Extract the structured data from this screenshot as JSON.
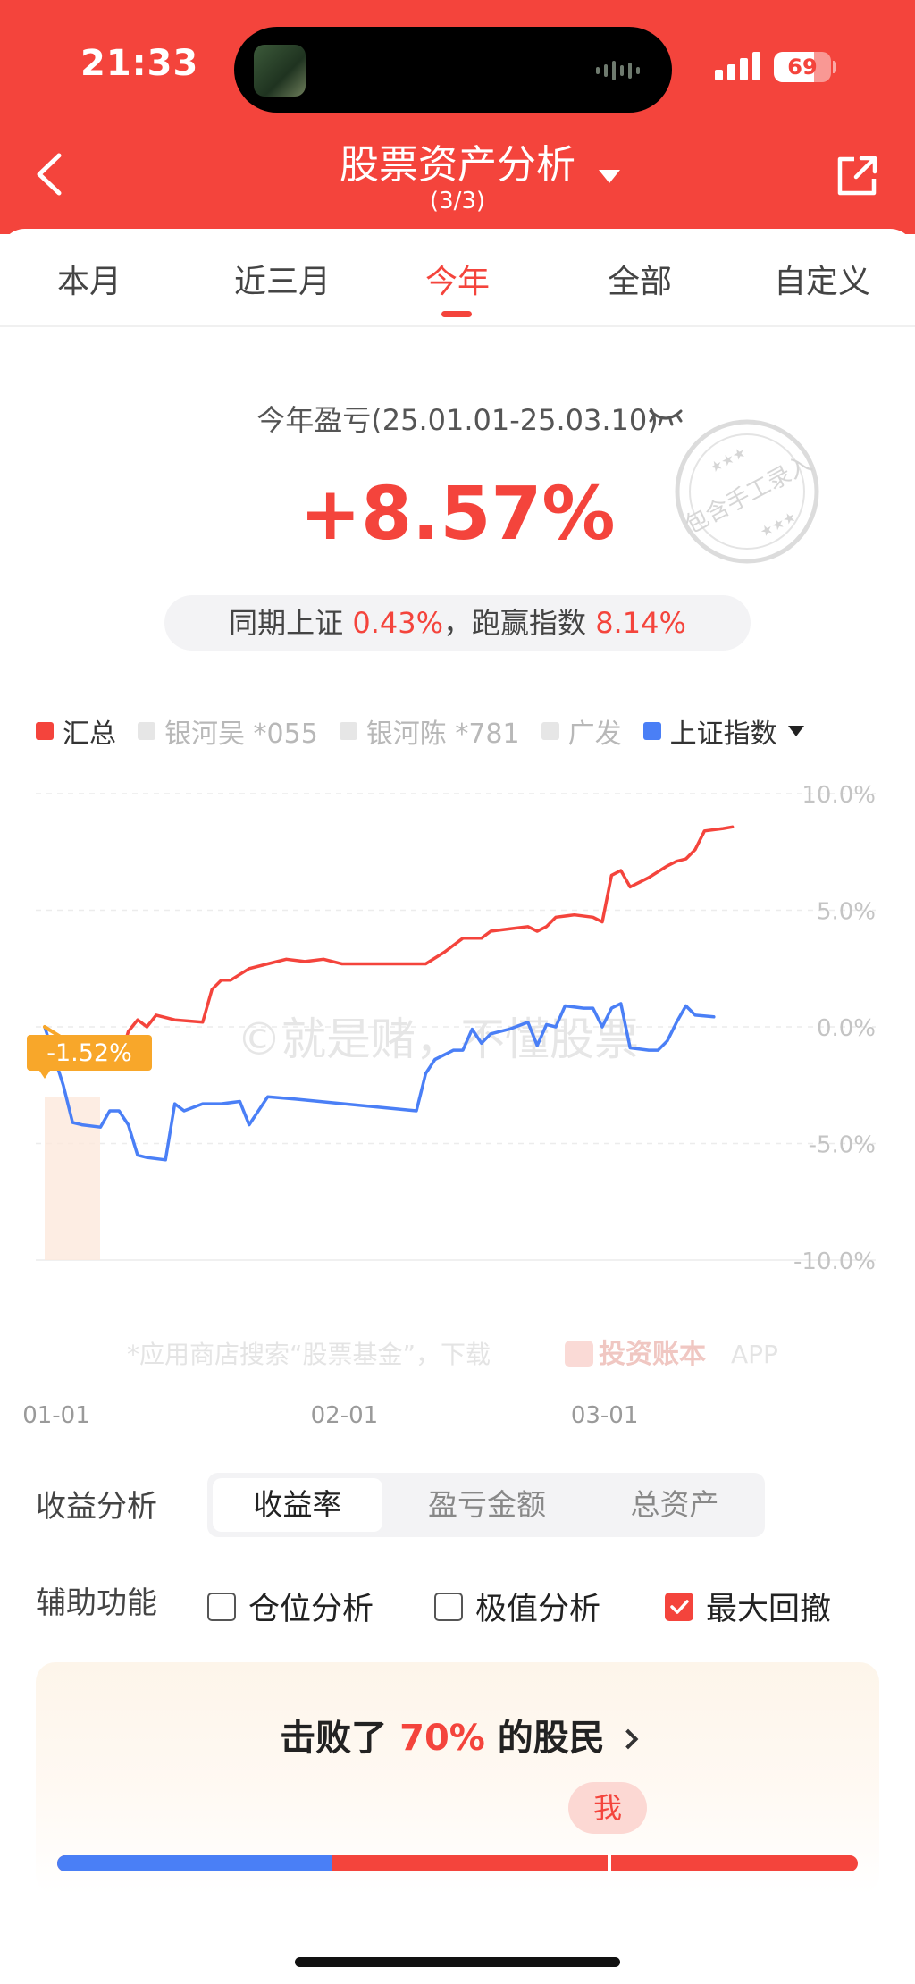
{
  "status_bar": {
    "time": "21:33",
    "battery": "69"
  },
  "header": {
    "title": "股票资产分析",
    "subtitle": "(3/3)"
  },
  "tabs": [
    {
      "label": "本月",
      "active": false
    },
    {
      "label": "近三月",
      "active": false
    },
    {
      "label": "今年",
      "active": true
    },
    {
      "label": "全部",
      "active": false
    },
    {
      "label": "自定义",
      "active": false
    }
  ],
  "summary": {
    "label": "今年盈亏(25.01.01-25.03.10)",
    "value": "+8.57%",
    "stamp_text": "包含手工录入",
    "compare_prefix": "同期上证 ",
    "compare_index": "0.43%",
    "compare_mid": "，跑赢指数 ",
    "compare_excess": "8.14%"
  },
  "legend": [
    {
      "name": "汇总",
      "color": "#f4443c",
      "active": true
    },
    {
      "name": "银河吴 *055",
      "color": "#e6e6e6",
      "active": false
    },
    {
      "name": "银河陈 *781",
      "color": "#e6e6e6",
      "active": false
    },
    {
      "name": "广发",
      "color": "#e6e6e6",
      "active": false
    },
    {
      "name": "上证指数",
      "color": "#4a7ff6",
      "active": true
    }
  ],
  "chart": {
    "y_ticks": [
      "10.0%",
      "5.0%",
      "0.0%",
      "-5.0%",
      "-10.0%"
    ],
    "x_ticks": [
      "01-01",
      "02-01",
      "03-01"
    ],
    "drawdown_label": "-1.52%",
    "watermark": "©就是赌，不懂股票",
    "footer_text": "*应用商店搜索“股票基金”，下载",
    "footer_brand": "投资账本",
    "footer_app": "APP"
  },
  "chart_data": {
    "type": "line",
    "ylim": [
      -10,
      10
    ],
    "x_range": [
      "2025-01-01",
      "2025-03-10"
    ],
    "series": [
      {
        "name": "汇总",
        "color": "#f4443c",
        "points": [
          [
            0,
            0.0
          ],
          [
            2,
            -0.5
          ],
          [
            4,
            -1.3
          ],
          [
            6,
            -1.5
          ],
          [
            8,
            -1.52
          ],
          [
            9,
            -0.2
          ],
          [
            10,
            0.3
          ],
          [
            11,
            0.0
          ],
          [
            12,
            0.5
          ],
          [
            14,
            0.3
          ],
          [
            17,
            0.2
          ],
          [
            18,
            1.6
          ],
          [
            19,
            2.0
          ],
          [
            20,
            2.0
          ],
          [
            22,
            2.5
          ],
          [
            24,
            2.7
          ],
          [
            26,
            2.9
          ],
          [
            28,
            2.8
          ],
          [
            30,
            2.9
          ],
          [
            32,
            2.7
          ],
          [
            35,
            2.7
          ],
          [
            38,
            2.7
          ],
          [
            41,
            2.7
          ],
          [
            43,
            3.2
          ],
          [
            45,
            3.8
          ],
          [
            47,
            3.8
          ],
          [
            48,
            4.1
          ],
          [
            50,
            4.2
          ],
          [
            52,
            4.3
          ],
          [
            53,
            4.1
          ],
          [
            54,
            4.3
          ],
          [
            55,
            4.7
          ],
          [
            57,
            4.8
          ],
          [
            59,
            4.7
          ],
          [
            60,
            4.5
          ],
          [
            61,
            6.5
          ],
          [
            62,
            6.7
          ],
          [
            63,
            6.0
          ],
          [
            65,
            6.4
          ],
          [
            67,
            6.9
          ],
          [
            68,
            7.1
          ],
          [
            69,
            7.2
          ],
          [
            70,
            7.6
          ],
          [
            71,
            8.4
          ],
          [
            73,
            8.5
          ],
          [
            74,
            8.57
          ]
        ]
      },
      {
        "name": "上证指数",
        "color": "#4a7ff6",
        "points": [
          [
            0,
            0.0
          ],
          [
            2,
            -2.5
          ],
          [
            3,
            -4.1
          ],
          [
            4,
            -4.2
          ],
          [
            6,
            -4.3
          ],
          [
            7,
            -3.6
          ],
          [
            8,
            -3.6
          ],
          [
            9,
            -4.2
          ],
          [
            10,
            -5.5
          ],
          [
            11,
            -5.6
          ],
          [
            13,
            -5.7
          ],
          [
            14,
            -3.3
          ],
          [
            15,
            -3.6
          ],
          [
            17,
            -3.3
          ],
          [
            19,
            -3.3
          ],
          [
            21,
            -3.2
          ],
          [
            22,
            -4.2
          ],
          [
            24,
            -3.0
          ],
          [
            27,
            -3.1
          ],
          [
            40,
            -3.6
          ],
          [
            41,
            -2.0
          ],
          [
            42,
            -1.4
          ],
          [
            44,
            -1.0
          ],
          [
            45,
            -1.0
          ],
          [
            46,
            -0.1
          ],
          [
            47,
            -0.7
          ],
          [
            48,
            -0.3
          ],
          [
            50,
            -0.1
          ],
          [
            52,
            0.2
          ],
          [
            53,
            -0.8
          ],
          [
            54,
            0.1
          ],
          [
            55,
            0.0
          ],
          [
            56,
            0.9
          ],
          [
            58,
            0.8
          ],
          [
            59,
            0.8
          ],
          [
            60,
            0.0
          ],
          [
            61,
            0.8
          ],
          [
            62,
            1.0
          ],
          [
            63,
            -0.9
          ],
          [
            65,
            -1.0
          ],
          [
            66,
            -1.0
          ],
          [
            67,
            -0.6
          ],
          [
            68,
            0.2
          ],
          [
            69,
            0.9
          ],
          [
            70,
            0.5
          ],
          [
            72,
            0.43
          ]
        ]
      }
    ]
  },
  "analysis": {
    "label": "收益分析",
    "options": [
      {
        "label": "收益率",
        "active": true
      },
      {
        "label": "盈亏金额",
        "active": false
      },
      {
        "label": "总资产",
        "active": false
      }
    ]
  },
  "aux": {
    "label": "辅助功能",
    "checks": [
      {
        "label": "仓位分析",
        "checked": false
      },
      {
        "label": "极值分析",
        "checked": false
      },
      {
        "label": "最大回撤",
        "checked": true
      }
    ]
  },
  "beat": {
    "prefix": "击败了 ",
    "pct": "70%",
    "suffix": " 的股民",
    "me_label": "我",
    "beat_fraction": 0.7
  }
}
